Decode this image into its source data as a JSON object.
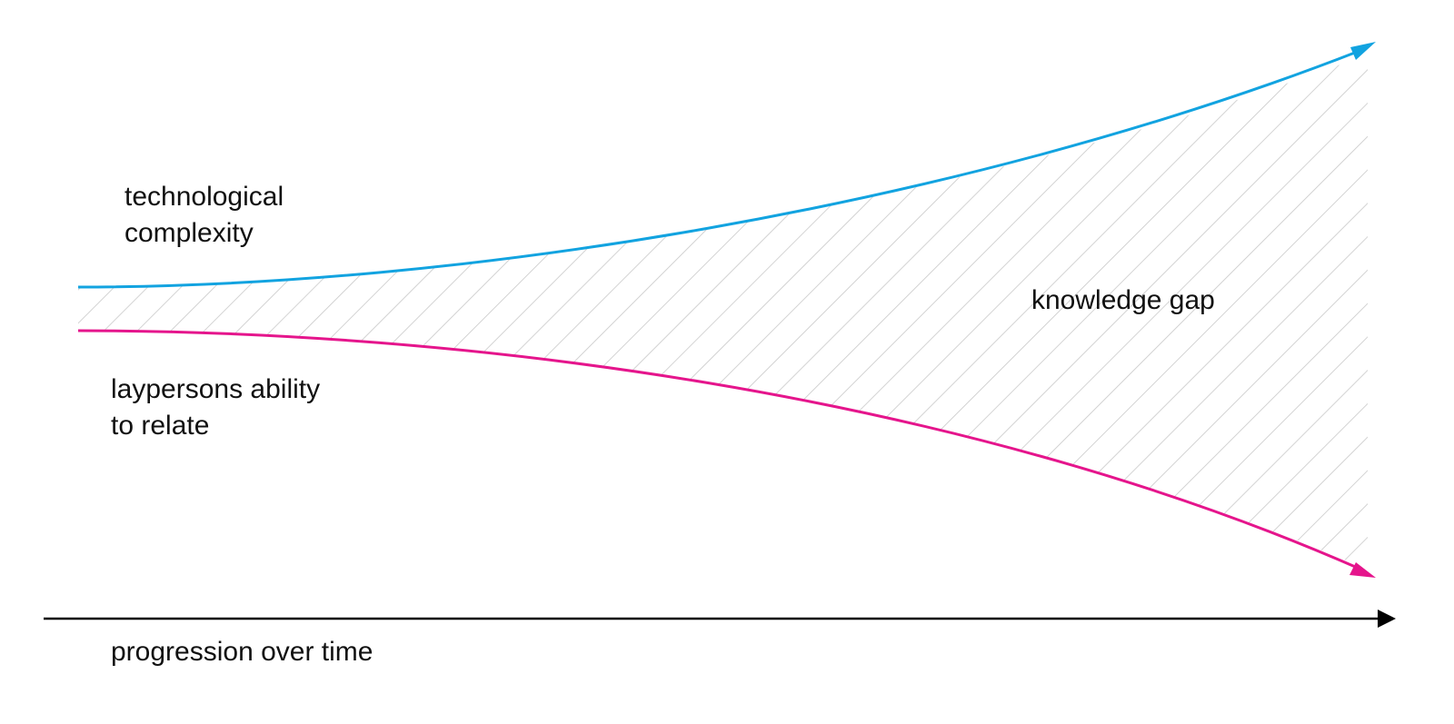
{
  "diagram": {
    "upper_curve": {
      "label_line1": "technological",
      "label_line2": "complexity",
      "color": "#12a3e0"
    },
    "lower_curve": {
      "label_line1": "laypersons ability",
      "label_line2": "to relate",
      "color": "#e5158c"
    },
    "gap_label": "knowledge gap",
    "hatch_color": "#c8c8c8",
    "axis": {
      "label": "progression over time",
      "color": "#000000"
    }
  }
}
